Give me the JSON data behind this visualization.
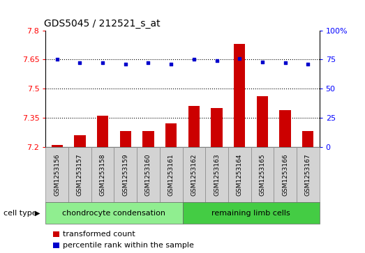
{
  "title": "GDS5045 / 212521_s_at",
  "samples": [
    "GSM1253156",
    "GSM1253157",
    "GSM1253158",
    "GSM1253159",
    "GSM1253160",
    "GSM1253161",
    "GSM1253162",
    "GSM1253163",
    "GSM1253164",
    "GSM1253165",
    "GSM1253166",
    "GSM1253167"
  ],
  "transformed_count": [
    7.21,
    7.26,
    7.36,
    7.28,
    7.28,
    7.32,
    7.41,
    7.4,
    7.73,
    7.46,
    7.39,
    7.28
  ],
  "percentile_rank": [
    75,
    72,
    72,
    71,
    72,
    71,
    75,
    74,
    76,
    73,
    72,
    71
  ],
  "cell_type_groups": [
    {
      "label": "chondrocyte condensation",
      "start": 0,
      "end": 5,
      "color": "#90EE90"
    },
    {
      "label": "remaining limb cells",
      "start": 6,
      "end": 11,
      "color": "#44CC44"
    }
  ],
  "ylim_left": [
    7.2,
    7.8
  ],
  "ylim_right": [
    0,
    100
  ],
  "yticks_left": [
    7.2,
    7.35,
    7.5,
    7.65,
    7.8
  ],
  "yticks_right": [
    0,
    25,
    50,
    75,
    100
  ],
  "hlines": [
    7.35,
    7.5,
    7.65
  ],
  "bar_color": "#CC0000",
  "dot_color": "#0000CC",
  "bar_width": 0.5,
  "cell_type_label": "cell type",
  "legend_bar_label": "transformed count",
  "legend_dot_label": "percentile rank within the sample"
}
